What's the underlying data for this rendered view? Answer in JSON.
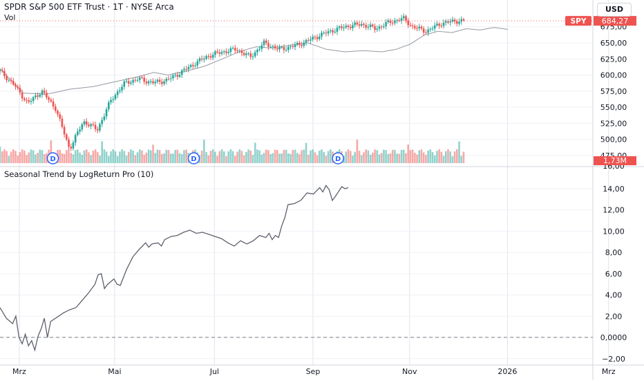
{
  "chart_data": [
    {
      "type": "candlestick",
      "title": "SPDR S&P 500 ETF Trust · 1T · NYSE Arca",
      "volume_label": "Vol",
      "currency": "USD",
      "symbol": "SPY",
      "last_price": "684,27",
      "last_volume": "1,73M",
      "overlay_label": "16,00",
      "y_ticks": [
        "675,00",
        "650,00",
        "625,00",
        "600,00",
        "575,00",
        "550,00",
        "525,00",
        "500,00",
        "475,00"
      ],
      "y_tick_values": [
        675,
        650,
        625,
        600,
        575,
        550,
        525,
        500,
        475
      ],
      "y_range": [
        463,
        693
      ],
      "dividend_marker": "D",
      "dividend_positions": [
        0.114,
        0.418,
        0.729
      ],
      "price_path": [
        [
          0.0,
          606
        ],
        [
          0.03,
          585
        ],
        [
          0.06,
          556
        ],
        [
          0.09,
          575
        ],
        [
          0.12,
          548
        ],
        [
          0.15,
          485
        ],
        [
          0.18,
          528
        ],
        [
          0.21,
          515
        ],
        [
          0.24,
          562
        ],
        [
          0.27,
          588
        ],
        [
          0.3,
          594
        ],
        [
          0.33,
          588
        ],
        [
          0.36,
          592
        ],
        [
          0.39,
          604
        ],
        [
          0.42,
          618
        ],
        [
          0.45,
          630
        ],
        [
          0.48,
          636
        ],
        [
          0.51,
          640
        ],
        [
          0.54,
          628
        ],
        [
          0.57,
          650
        ],
        [
          0.6,
          640
        ],
        [
          0.63,
          644
        ],
        [
          0.66,
          652
        ],
        [
          0.69,
          662
        ],
        [
          0.72,
          670
        ],
        [
          0.75,
          676
        ],
        [
          0.78,
          679
        ],
        [
          0.81,
          672
        ],
        [
          0.84,
          682
        ],
        [
          0.87,
          688
        ],
        [
          0.89,
          675
        ],
        [
          0.92,
          668
        ],
        [
          0.95,
          680
        ],
        [
          0.98,
          684
        ],
        [
          1.0,
          684
        ]
      ],
      "comparison_path": [
        [
          0.0,
          610
        ],
        [
          0.05,
          572
        ],
        [
          0.1,
          570
        ],
        [
          0.15,
          578
        ],
        [
          0.2,
          582
        ],
        [
          0.25,
          590
        ],
        [
          0.3,
          598
        ],
        [
          0.33,
          604
        ],
        [
          0.36,
          600
        ],
        [
          0.4,
          606
        ],
        [
          0.44,
          614
        ],
        [
          0.48,
          626
        ],
        [
          0.52,
          638
        ],
        [
          0.55,
          644
        ],
        [
          0.58,
          642
        ],
        [
          0.62,
          646
        ],
        [
          0.66,
          650
        ],
        [
          0.7,
          640
        ],
        [
          0.74,
          636
        ],
        [
          0.78,
          638
        ],
        [
          0.82,
          636
        ],
        [
          0.85,
          640
        ],
        [
          0.88,
          648
        ],
        [
          0.91,
          662
        ],
        [
          0.94,
          668
        ],
        [
          0.97,
          666
        ],
        [
          1.0,
          672
        ],
        [
          1.03,
          670
        ],
        [
          1.06,
          674
        ],
        [
          1.09,
          671
        ]
      ]
    },
    {
      "type": "line",
      "title": "Seasonal Trend by LogReturn Pro (10)",
      "y_ticks": [
        "14,00",
        "12,00",
        "10,00",
        "8,00",
        "6,00",
        "4,00",
        "2,00",
        "0,0000",
        "−2,00"
      ],
      "y_tick_values": [
        14,
        12,
        10,
        8,
        6,
        4,
        2,
        0,
        -2
      ],
      "y_range": [
        -2.6,
        15.3
      ],
      "zero_line": true,
      "series": [
        {
          "values": [
            [
              0.0,
              2.8
            ],
            [
              0.02,
              1.8
            ],
            [
              0.04,
              1.3
            ],
            [
              0.05,
              2.0
            ],
            [
              0.06,
              0.0
            ],
            [
              0.07,
              -0.6
            ],
            [
              0.08,
              0.3
            ],
            [
              0.09,
              -0.8
            ],
            [
              0.1,
              -0.3
            ],
            [
              0.11,
              -1.2
            ],
            [
              0.12,
              0.1
            ],
            [
              0.13,
              0.8
            ],
            [
              0.14,
              1.8
            ],
            [
              0.15,
              0.0
            ],
            [
              0.16,
              1.5
            ],
            [
              0.18,
              1.9
            ],
            [
              0.2,
              2.3
            ],
            [
              0.22,
              2.6
            ],
            [
              0.24,
              2.8
            ],
            [
              0.26,
              3.5
            ],
            [
              0.28,
              4.2
            ],
            [
              0.3,
              5.0
            ],
            [
              0.31,
              5.9
            ],
            [
              0.32,
              6.0
            ],
            [
              0.33,
              4.6
            ],
            [
              0.34,
              5.0
            ],
            [
              0.36,
              5.5
            ],
            [
              0.37,
              5.0
            ],
            [
              0.38,
              4.9
            ],
            [
              0.4,
              6.4
            ],
            [
              0.42,
              7.6
            ],
            [
              0.44,
              8.3
            ],
            [
              0.46,
              8.9
            ],
            [
              0.47,
              8.5
            ],
            [
              0.48,
              8.8
            ],
            [
              0.5,
              8.9
            ],
            [
              0.51,
              8.6
            ],
            [
              0.52,
              9.2
            ],
            [
              0.54,
              9.5
            ],
            [
              0.56,
              9.6
            ],
            [
              0.58,
              9.9
            ],
            [
              0.6,
              10.1
            ],
            [
              0.62,
              9.8
            ],
            [
              0.64,
              9.9
            ],
            [
              0.66,
              9.7
            ],
            [
              0.68,
              9.5
            ],
            [
              0.7,
              9.3
            ],
            [
              0.72,
              8.9
            ],
            [
              0.74,
              8.6
            ],
            [
              0.76,
              9.1
            ],
            [
              0.78,
              8.8
            ],
            [
              0.8,
              9.1
            ],
            [
              0.82,
              9.6
            ],
            [
              0.84,
              9.4
            ],
            [
              0.85,
              9.8
            ],
            [
              0.86,
              9.2
            ],
            [
              0.87,
              9.6
            ],
            [
              0.88,
              9.4
            ],
            [
              0.89,
              10.5
            ],
            [
              0.9,
              11.3
            ],
            [
              0.91,
              12.5
            ],
            [
              0.93,
              12.6
            ],
            [
              0.95,
              12.9
            ],
            [
              0.97,
              13.6
            ],
            [
              0.99,
              13.5
            ],
            [
              1.01,
              14.1
            ],
            [
              1.02,
              13.7
            ],
            [
              1.03,
              14.3
            ],
            [
              1.04,
              13.9
            ],
            [
              1.05,
              12.9
            ],
            [
              1.06,
              13.3
            ],
            [
              1.08,
              14.2
            ],
            [
              1.09,
              14.0
            ],
            [
              1.1,
              14.1
            ]
          ]
        }
      ]
    }
  ],
  "x_axis": {
    "labels": [
      "Mrz",
      "Mai",
      "Jul",
      "Sep",
      "Nov",
      "2026",
      "Mrz"
    ],
    "positions": [
      0.03,
      0.178,
      0.333,
      0.486,
      0.636,
      0.788,
      0.945
    ]
  }
}
